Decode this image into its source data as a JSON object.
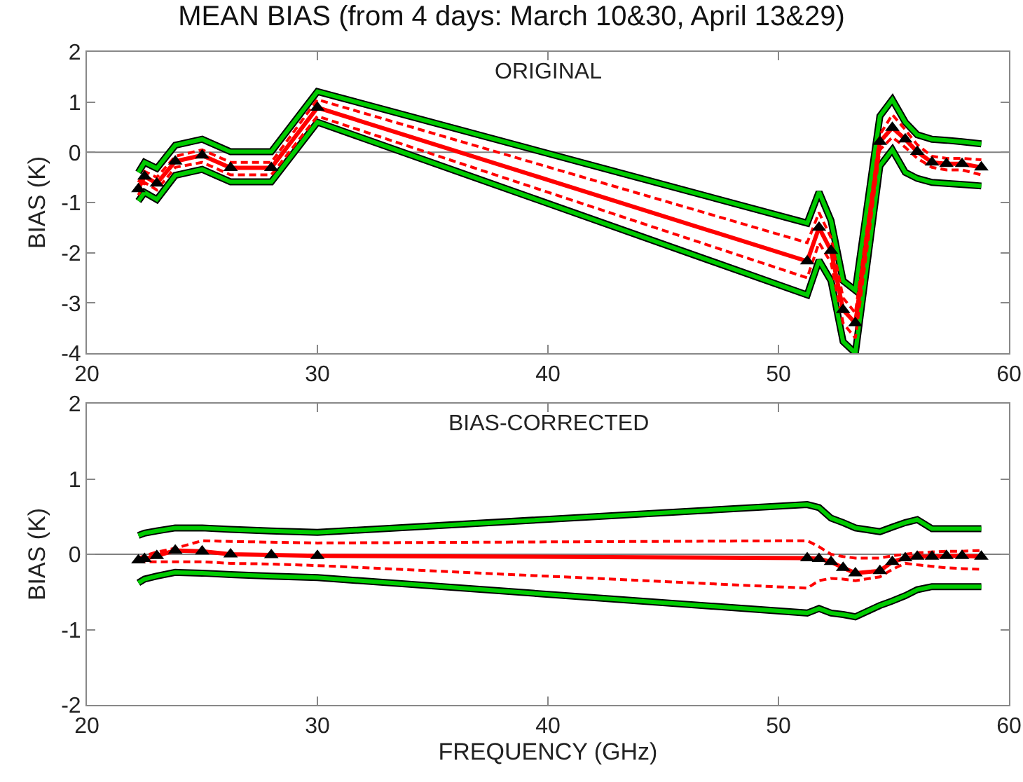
{
  "chart_data": [
    {
      "type": "line",
      "title": "MEAN BIAS (from 4 days: March 10&30, April 13&29)",
      "ylabel": "BIAS (K)",
      "annotations": [
        "ORIGINAL"
      ],
      "x": [
        22.234,
        22.5,
        23.034,
        23.834,
        25.0,
        26.234,
        28.0,
        30.0,
        51.248,
        51.76,
        52.28,
        52.804,
        53.336,
        54.4,
        54.94,
        55.5,
        56.02,
        56.66,
        57.288,
        57.964,
        58.8
      ],
      "xlim": [
        20,
        60
      ],
      "xticks": [
        20,
        30,
        40,
        50,
        60
      ],
      "ylim": [
        -4,
        2
      ],
      "yticks": [
        -4,
        -3,
        -2,
        -1,
        0,
        1,
        2
      ],
      "ref_lines": [
        {
          "axis": "y",
          "value": 0,
          "color": "#808080"
        }
      ],
      "series": [
        {
          "color": "#00cc00",
          "values": [
            -0.4,
            -0.2,
            -0.32,
            0.14,
            0.26,
            0.01,
            0.01,
            1.21,
            -1.41,
            -0.79,
            -1.36,
            -2.56,
            -2.75,
            0.72,
            1.05,
            0.6,
            0.35,
            0.26,
            0.24,
            0.21,
            0.17
          ]
        },
        {
          "color": "#00cc00",
          "values": [
            -0.97,
            -0.8,
            -0.94,
            -0.46,
            -0.34,
            -0.59,
            -0.59,
            0.6,
            -2.84,
            -2.15,
            -2.56,
            -3.77,
            -4.0,
            -0.27,
            0.05,
            -0.4,
            -0.52,
            -0.6,
            -0.62,
            -0.64,
            -0.67
          ]
        },
        {
          "color": "#ff0000",
          "line_style": "dashed",
          "values": [
            -0.6,
            -0.38,
            -0.5,
            -0.08,
            0.05,
            -0.2,
            -0.2,
            1.05,
            -1.8,
            -1.2,
            -1.7,
            -2.9,
            -3.2,
            0.35,
            0.75,
            0.45,
            0.15,
            -0.08,
            -0.12,
            -0.12,
            -0.15
          ]
        },
        {
          "color": "#ff0000",
          "line_style": "dashed",
          "values": [
            -0.85,
            -0.6,
            -0.75,
            -0.3,
            -0.2,
            -0.45,
            -0.45,
            0.72,
            -2.5,
            -1.8,
            -2.2,
            -3.4,
            -3.7,
            0.05,
            0.3,
            0.1,
            -0.12,
            -0.3,
            -0.35,
            -0.35,
            -0.45
          ]
        },
        {
          "color": "#ff0000",
          "values": [
            -0.73,
            -0.48,
            -0.62,
            -0.18,
            -0.06,
            -0.31,
            -0.31,
            0.89,
            -2.17,
            -1.5,
            -1.96,
            -3.14,
            -3.4,
            0.21,
            0.49,
            0.26,
            0.01,
            -0.2,
            -0.23,
            -0.23,
            -0.3
          ]
        },
        {
          "type": "scatter",
          "marker": "triangle",
          "color": "#000000",
          "values": [
            -0.73,
            -0.48,
            -0.62,
            -0.18,
            -0.06,
            -0.31,
            -0.31,
            0.89,
            -2.17,
            -1.5,
            -1.96,
            -3.14,
            -3.4,
            0.21,
            0.49,
            0.26,
            0.01,
            -0.2,
            -0.23,
            -0.23,
            -0.3
          ]
        }
      ]
    },
    {
      "type": "line",
      "xlabel": "FREQUENCY (GHz)",
      "ylabel": "BIAS (K)",
      "annotations": [
        "BIAS-CORRECTED"
      ],
      "x": [
        22.234,
        22.5,
        23.034,
        23.834,
        25.0,
        26.234,
        28.0,
        30.0,
        51.248,
        51.76,
        52.28,
        52.804,
        53.336,
        54.4,
        54.94,
        55.5,
        56.02,
        56.66,
        57.288,
        57.964,
        58.8
      ],
      "xlim": [
        20,
        60
      ],
      "xticks": [
        20,
        30,
        40,
        50,
        60
      ],
      "ylim": [
        -2,
        2
      ],
      "yticks": [
        -2,
        -1,
        0,
        1,
        2
      ],
      "ref_lines": [
        {
          "axis": "y",
          "value": 0,
          "color": "#808080"
        }
      ],
      "series": [
        {
          "color": "#00cc00",
          "values": [
            0.25,
            0.28,
            0.31,
            0.35,
            0.35,
            0.33,
            0.31,
            0.29,
            0.66,
            0.62,
            0.48,
            0.42,
            0.35,
            0.3,
            0.36,
            0.42,
            0.46,
            0.34,
            0.34,
            0.34,
            0.34
          ]
        },
        {
          "color": "#00cc00",
          "values": [
            -0.38,
            -0.33,
            -0.29,
            -0.24,
            -0.25,
            -0.27,
            -0.29,
            -0.31,
            -0.78,
            -0.72,
            -0.78,
            -0.8,
            -0.83,
            -0.68,
            -0.62,
            -0.55,
            -0.47,
            -0.43,
            -0.43,
            -0.43,
            -0.43
          ]
        },
        {
          "color": "#ff0000",
          "line_style": "dashed",
          "values": [
            -0.05,
            -0.02,
            0.03,
            0.08,
            0.18,
            0.17,
            0.16,
            0.15,
            0.18,
            0.1,
            0.0,
            -0.03,
            -0.05,
            -0.05,
            -0.02,
            0.0,
            0.02,
            0.03,
            0.04,
            0.04,
            0.05
          ]
        },
        {
          "color": "#ff0000",
          "line_style": "dashed",
          "values": [
            -0.1,
            -0.1,
            -0.1,
            -0.1,
            -0.1,
            -0.12,
            -0.13,
            -0.15,
            -0.45,
            -0.35,
            -0.32,
            -0.33,
            -0.35,
            -0.3,
            -0.2,
            -0.12,
            -0.14,
            -0.16,
            -0.18,
            -0.19,
            -0.2
          ]
        },
        {
          "color": "#ff0000",
          "values": [
            -0.08,
            -0.06,
            -0.02,
            0.05,
            0.04,
            0.0,
            -0.01,
            -0.02,
            -0.05,
            -0.06,
            -0.1,
            -0.18,
            -0.25,
            -0.22,
            -0.1,
            -0.05,
            -0.03,
            -0.03,
            -0.02,
            -0.02,
            -0.03
          ]
        },
        {
          "type": "scatter",
          "marker": "triangle",
          "color": "#000000",
          "values": [
            -0.08,
            -0.06,
            -0.02,
            0.05,
            0.04,
            0.0,
            -0.01,
            -0.02,
            -0.05,
            -0.06,
            -0.1,
            -0.18,
            -0.25,
            -0.22,
            -0.1,
            -0.05,
            -0.03,
            -0.03,
            -0.02,
            -0.02,
            -0.03
          ]
        }
      ]
    }
  ]
}
